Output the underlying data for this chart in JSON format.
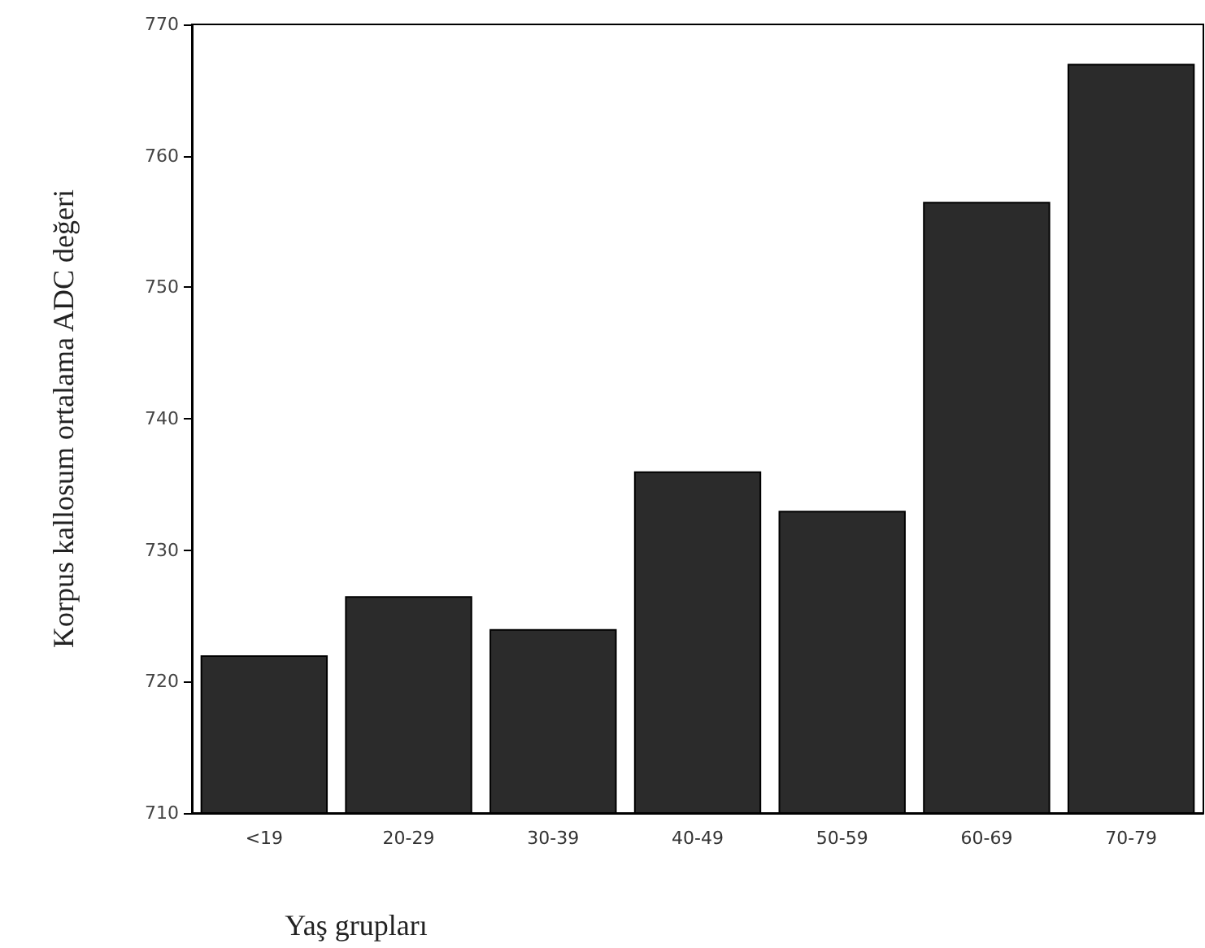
{
  "chart_data": {
    "type": "bar",
    "xlabel": "Yaş grupları",
    "ylabel": "Korpus kallosum ortalama ADC değeri",
    "categories": [
      "<19",
      "20-29",
      "30-39",
      "40-49",
      "50-59",
      "60-69",
      "70-79"
    ],
    "values": [
      722,
      726.5,
      724,
      736,
      733,
      756.5,
      767
    ],
    "color": "#2b2b2b",
    "ylim": [
      710,
      770
    ],
    "yticks": [
      710,
      720,
      730,
      740,
      750,
      760,
      770
    ],
    "grid": false
  }
}
